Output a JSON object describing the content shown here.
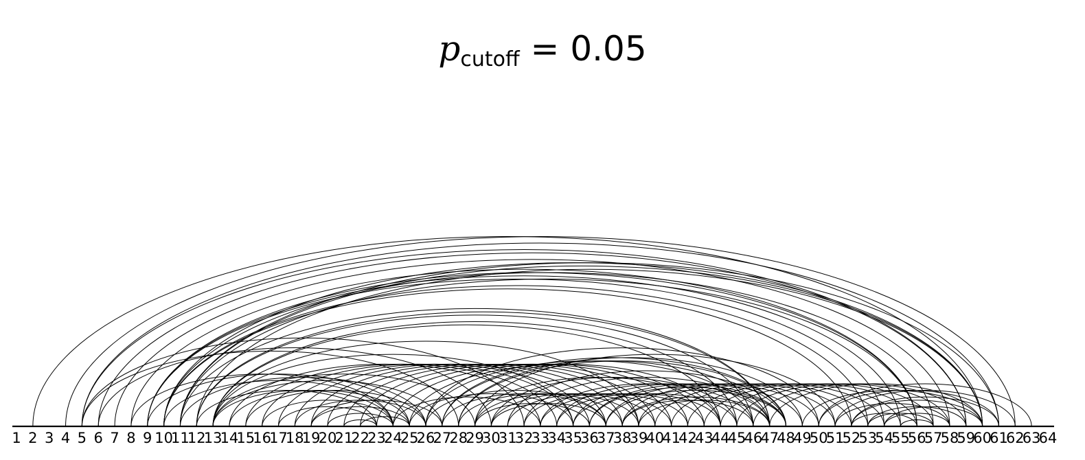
{
  "title": {
    "symbol": "p",
    "subscript": "cutoff",
    "rest": " = 0.05"
  },
  "chart_data": {
    "type": "arc-diagram",
    "nodes": [
      1,
      2,
      3,
      4,
      5,
      6,
      7,
      8,
      9,
      10,
      11,
      12,
      13,
      14,
      15,
      16,
      17,
      18,
      19,
      20,
      21,
      22,
      23,
      24,
      25,
      26,
      27,
      28,
      29,
      30,
      31,
      32,
      33,
      34,
      35,
      36,
      37,
      38,
      39,
      40,
      41,
      42,
      43,
      44,
      45,
      46,
      47,
      48,
      49,
      50,
      51,
      52,
      53,
      54,
      55,
      56,
      57,
      58,
      59,
      60,
      61,
      62,
      63,
      64
    ],
    "node_labels": [
      "1",
      "2",
      "3",
      "4",
      "5",
      "6",
      "7",
      "8",
      "9",
      "10",
      "11",
      "12",
      "13",
      "14",
      "15",
      "16",
      "17",
      "18",
      "19",
      "20",
      "21",
      "22",
      "23",
      "24",
      "25",
      "26",
      "27",
      "28",
      "29",
      "30",
      "31",
      "32",
      "33",
      "34",
      "35",
      "36",
      "37",
      "38",
      "39",
      "40",
      "41",
      "42",
      "43",
      "44",
      "45",
      "46",
      "47",
      "48",
      "49",
      "50",
      "51",
      "52",
      "53",
      "54",
      "55",
      "56",
      "57",
      "58",
      "59",
      "60",
      "61",
      "62",
      "63",
      "64"
    ],
    "edges": [
      [
        2,
        60
      ],
      [
        4,
        62
      ],
      [
        5,
        61
      ],
      [
        5,
        59
      ],
      [
        6,
        59
      ],
      [
        7,
        58
      ],
      [
        8,
        56
      ],
      [
        9,
        56
      ],
      [
        9,
        55
      ],
      [
        9,
        54
      ],
      [
        10,
        53
      ],
      [
        10,
        52
      ],
      [
        10,
        57
      ],
      [
        10,
        60
      ],
      [
        11,
        60
      ],
      [
        11,
        61
      ],
      [
        11,
        56
      ],
      [
        11,
        47
      ],
      [
        12,
        60
      ],
      [
        12,
        47
      ],
      [
        12,
        46
      ],
      [
        13,
        45
      ],
      [
        13,
        44
      ],
      [
        13,
        39
      ],
      [
        13,
        35
      ],
      [
        13,
        29
      ],
      [
        13,
        27
      ],
      [
        5,
        32
      ],
      [
        6,
        30
      ],
      [
        5,
        28
      ],
      [
        8,
        24
      ],
      [
        9,
        25
      ],
      [
        10,
        24
      ],
      [
        11,
        26
      ],
      [
        12,
        23
      ],
      [
        13,
        24
      ],
      [
        14,
        25
      ],
      [
        15,
        26
      ],
      [
        16,
        24
      ],
      [
        17,
        23
      ],
      [
        18,
        26
      ],
      [
        19,
        25
      ],
      [
        20,
        24
      ],
      [
        21,
        23
      ],
      [
        22,
        25
      ],
      [
        19,
        27
      ],
      [
        26,
        50
      ],
      [
        27,
        48
      ],
      [
        27,
        47
      ],
      [
        28,
        49
      ],
      [
        28,
        48
      ],
      [
        29,
        51
      ],
      [
        29,
        44
      ],
      [
        30,
        45
      ],
      [
        31,
        48
      ],
      [
        32,
        47
      ],
      [
        26,
        46
      ],
      [
        25,
        44
      ],
      [
        24,
        43
      ],
      [
        23,
        42
      ],
      [
        22,
        41
      ],
      [
        21,
        40
      ],
      [
        20,
        39
      ],
      [
        19,
        38
      ],
      [
        18,
        37
      ],
      [
        17,
        36
      ],
      [
        16,
        35
      ],
      [
        15,
        34
      ],
      [
        14,
        33
      ],
      [
        24,
        33
      ],
      [
        25,
        35
      ],
      [
        26,
        37
      ],
      [
        36,
        48
      ],
      [
        37,
        48
      ],
      [
        38,
        47
      ],
      [
        38,
        46
      ],
      [
        39,
        47
      ],
      [
        35,
        45
      ],
      [
        34,
        44
      ],
      [
        33,
        43
      ],
      [
        32,
        42
      ],
      [
        31,
        41
      ],
      [
        30,
        40
      ],
      [
        29,
        39
      ],
      [
        28,
        38
      ],
      [
        27,
        37
      ],
      [
        29,
        36
      ],
      [
        30,
        37
      ],
      [
        50,
        63
      ],
      [
        51,
        62
      ],
      [
        52,
        61
      ],
      [
        52,
        60
      ],
      [
        53,
        59
      ],
      [
        54,
        58
      ],
      [
        55,
        57
      ],
      [
        51,
        58
      ],
      [
        52,
        56
      ],
      [
        53,
        57
      ],
      [
        54,
        60
      ],
      [
        50,
        61
      ],
      [
        49,
        60
      ],
      [
        47,
        60
      ],
      [
        46,
        59
      ],
      [
        45,
        58
      ],
      [
        44,
        57
      ],
      [
        43,
        56
      ],
      [
        42,
        55
      ],
      [
        41,
        54
      ],
      [
        40,
        53
      ],
      [
        39,
        52
      ],
      [
        38,
        51
      ],
      [
        37,
        50
      ],
      [
        36,
        49
      ],
      [
        35,
        48
      ],
      [
        34,
        47
      ],
      [
        33,
        46
      ]
    ]
  }
}
